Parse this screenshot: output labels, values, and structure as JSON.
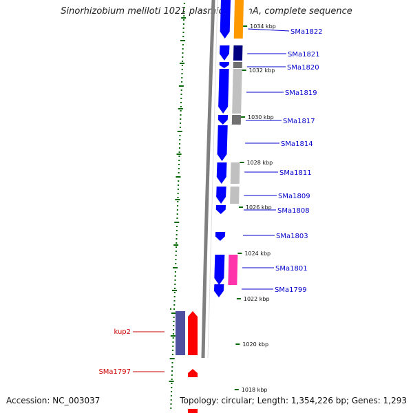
{
  "title": "Sinorhizobium meliloti 1021 plasmid pSymA, complete sequence",
  "footer": {
    "accession": "Accession: NC_003037",
    "summary": "Topology: circular; Length: 1,354,226 bp; Genes: 1,293"
  },
  "colors": {
    "backbone": "#808080",
    "forward_gene": "#0000ff",
    "gene_label": "#0000cc",
    "reverse_label": "#cc0000",
    "reverse_gene": "#ff0000",
    "tick": "#006600",
    "cog_orange": "#ff9900",
    "cog_navy": "#000080",
    "cog_grey": "#c0c0c0",
    "cog_darkgrey": "#707070",
    "cog_pink": "#ff33aa",
    "cog_purple": "#5050a0"
  },
  "scale": {
    "ticks": [
      {
        "label": "1034 kbp",
        "kbp": 1034
      },
      {
        "label": "1032 kbp",
        "kbp": 1032
      },
      {
        "label": "1030 kbp",
        "kbp": 1030
      },
      {
        "label": "1028 kbp",
        "kbp": 1028
      },
      {
        "label": "1026 kbp",
        "kbp": 1026
      },
      {
        "label": "1024 kbp",
        "kbp": 1024
      },
      {
        "label": "1022 kbp",
        "kbp": 1022
      },
      {
        "label": "1020 kbp",
        "kbp": 1020
      },
      {
        "label": "1018 kbp",
        "kbp": 1018
      }
    ]
  },
  "genes": {
    "forward": [
      {
        "name": "SMa1822",
        "cog": "orange"
      },
      {
        "name": "SMa1821",
        "cog": "navy"
      },
      {
        "name": "SMa1820",
        "cog": "darkgrey"
      },
      {
        "name": "SMa1819",
        "cog": "grey"
      },
      {
        "name": "SMa1817",
        "cog": "darkgrey"
      },
      {
        "name": "SMa1814",
        "cog": ""
      },
      {
        "name": "SMa1811",
        "cog": "grey"
      },
      {
        "name": "SMa1809",
        "cog": "grey"
      },
      {
        "name": "SMa1808",
        "cog": ""
      },
      {
        "name": "SMa1803",
        "cog": ""
      },
      {
        "name": "SMa1801",
        "cog": "pink"
      },
      {
        "name": "SMa1799",
        "cog": ""
      }
    ],
    "reverse": [
      {
        "name": "kup2",
        "cog": "purple"
      },
      {
        "name": "SMa1797",
        "cog": ""
      }
    ]
  }
}
